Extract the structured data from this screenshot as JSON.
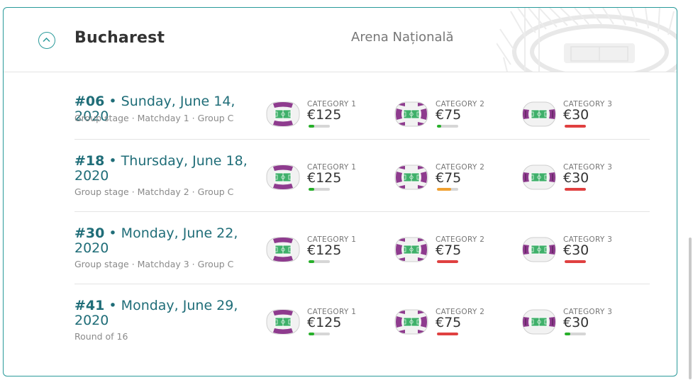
{
  "header": {
    "city": "Bucharest",
    "venue": "Arena Națională",
    "collapse_icon": "chevron-up-circle-icon"
  },
  "colors": {
    "accent": "#2a9a9a",
    "title": "#1f6d78",
    "availability_green": "#27b02a",
    "availability_orange": "#f0a030",
    "availability_red": "#e04040",
    "stadium_purple": "#8e3b8e",
    "pitch_green": "#3fb06a"
  },
  "matches": [
    {
      "number": "#06",
      "sep": " • ",
      "date": "Sunday, June 14, 2020",
      "subtitle": "Group stage · Matchday 1 · Group C",
      "categories": [
        {
          "label": "CATEGORY 1",
          "price": "€125",
          "availability": 0.25,
          "status": "green",
          "highlight": "ends"
        },
        {
          "label": "CATEGORY 2",
          "price": "€75",
          "availability": 0.2,
          "status": "green",
          "highlight": "sides"
        },
        {
          "label": "CATEGORY 3",
          "price": "€30",
          "availability": 1.0,
          "status": "red",
          "highlight": "corners"
        }
      ]
    },
    {
      "number": "#18",
      "sep": " • ",
      "date": "Thursday, June 18, 2020",
      "subtitle": "Group stage · Matchday 2 · Group C",
      "categories": [
        {
          "label": "CATEGORY 1",
          "price": "€125",
          "availability": 0.25,
          "status": "green",
          "highlight": "ends"
        },
        {
          "label": "CATEGORY 2",
          "price": "€75",
          "availability": 0.65,
          "status": "orange",
          "highlight": "sides"
        },
        {
          "label": "CATEGORY 3",
          "price": "€30",
          "availability": 1.0,
          "status": "red",
          "highlight": "corners"
        }
      ]
    },
    {
      "number": "#30",
      "sep": " • ",
      "date": "Monday, June 22, 2020",
      "subtitle": "Group stage · Matchday 3 · Group C",
      "categories": [
        {
          "label": "CATEGORY 1",
          "price": "€125",
          "availability": 0.25,
          "status": "green",
          "highlight": "ends"
        },
        {
          "label": "CATEGORY 2",
          "price": "€75",
          "availability": 1.0,
          "status": "red",
          "highlight": "sides"
        },
        {
          "label": "CATEGORY 3",
          "price": "€30",
          "availability": 1.0,
          "status": "red",
          "highlight": "corners"
        }
      ]
    },
    {
      "number": "#41",
      "sep": " • ",
      "date": "Monday, June 29, 2020",
      "subtitle": "Round of 16",
      "categories": [
        {
          "label": "CATEGORY 1",
          "price": "€125",
          "availability": 0.25,
          "status": "green",
          "highlight": "ends"
        },
        {
          "label": "CATEGORY 2",
          "price": "€75",
          "availability": 1.0,
          "status": "red",
          "highlight": "sides"
        },
        {
          "label": "CATEGORY 3",
          "price": "€30",
          "availability": 0.25,
          "status": "green",
          "highlight": "corners"
        }
      ]
    }
  ]
}
